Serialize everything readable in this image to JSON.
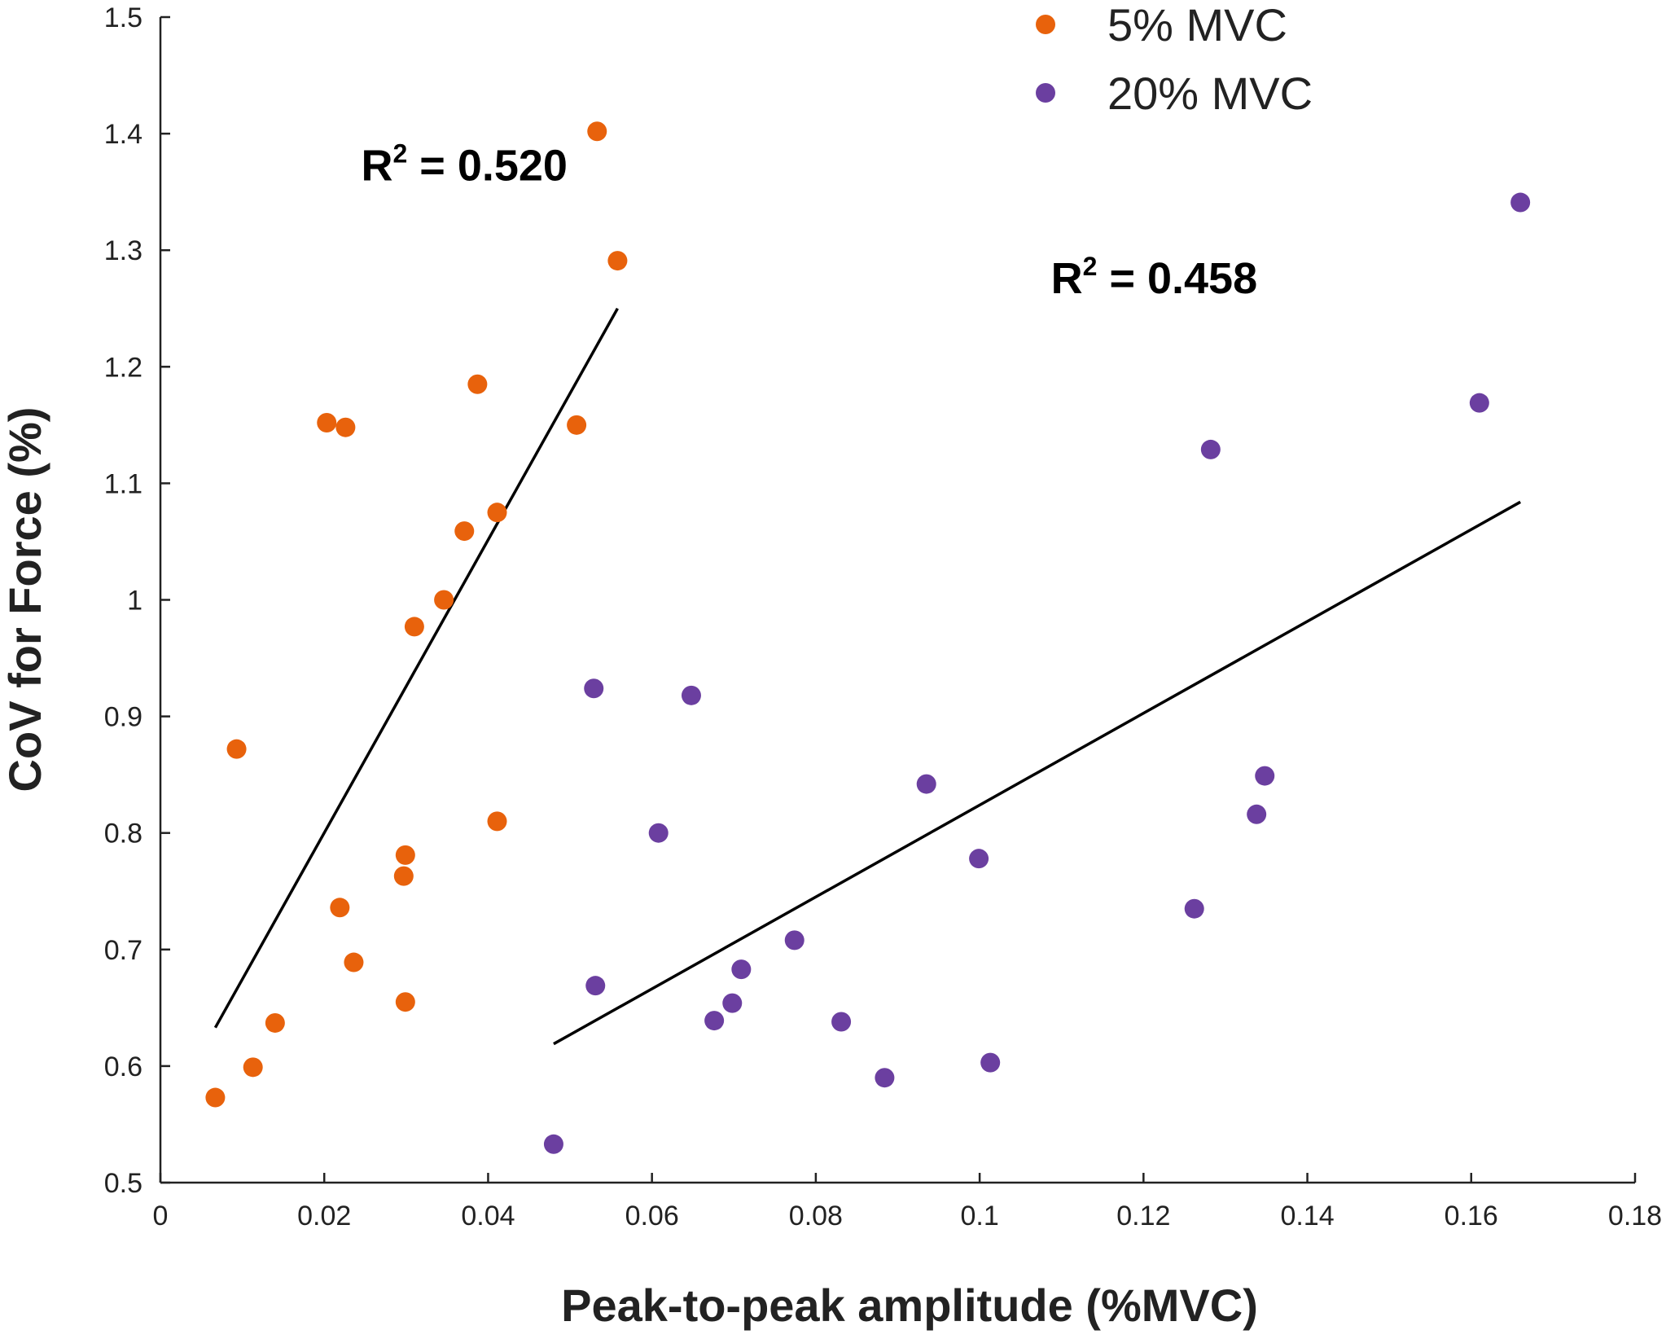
{
  "chart_data": {
    "type": "scatter",
    "title": "",
    "xlabel": "Peak-to-peak amplitude (%MVC)",
    "ylabel": "CoV for Force (%)",
    "xlim": [
      0,
      0.18
    ],
    "ylim": [
      0.5,
      1.5
    ],
    "xticks": [
      0,
      0.02,
      0.04,
      0.06,
      0.08,
      0.1,
      0.12,
      0.14,
      0.16,
      0.18
    ],
    "xtick_labels": [
      "0",
      "0.02",
      "0.04",
      "0.06",
      "0.08",
      "0.1",
      "0.12",
      "0.14",
      "0.16",
      "0.18"
    ],
    "yticks": [
      0.5,
      0.6,
      0.7,
      0.8,
      0.9,
      1.0,
      1.1,
      1.2,
      1.3,
      1.4,
      1.5
    ],
    "ytick_labels": [
      "0.5",
      "0.6",
      "0.7",
      "0.8",
      "0.9",
      "1",
      "1.1",
      "1.2",
      "1.3",
      "1.4",
      "1.5"
    ],
    "grid": false,
    "legend_position": "top-right",
    "series": [
      {
        "name": "5% MVC",
        "color": "#E8620C",
        "points": [
          [
            0.0067,
            0.573
          ],
          [
            0.0093,
            0.872
          ],
          [
            0.0113,
            0.599
          ],
          [
            0.014,
            0.637
          ],
          [
            0.0203,
            1.152
          ],
          [
            0.0219,
            0.736
          ],
          [
            0.0226,
            1.148
          ],
          [
            0.0236,
            0.689
          ],
          [
            0.0297,
            0.763
          ],
          [
            0.0299,
            0.781
          ],
          [
            0.0299,
            0.655
          ],
          [
            0.031,
            0.977
          ],
          [
            0.0346,
            1.0
          ],
          [
            0.0371,
            1.059
          ],
          [
            0.0387,
            1.185
          ],
          [
            0.0411,
            1.075
          ],
          [
            0.0411,
            0.81
          ],
          [
            0.0508,
            1.15
          ],
          [
            0.0533,
            1.402
          ],
          [
            0.0558,
            1.291
          ]
        ],
        "trendline": {
          "x": [
            0.0067,
            0.0558
          ],
          "y": [
            0.633,
            1.25
          ]
        },
        "annotation": {
          "text": "R",
          "sup": "2",
          "value": " = 0.520",
          "at": [
            0.0245,
            1.36
          ]
        }
      },
      {
        "name": "20% MVC",
        "color": "#6B3FA0",
        "points": [
          [
            0.048,
            0.533
          ],
          [
            0.0529,
            0.924
          ],
          [
            0.0531,
            0.669
          ],
          [
            0.0608,
            0.8
          ],
          [
            0.0648,
            0.918
          ],
          [
            0.0676,
            0.639
          ],
          [
            0.0698,
            0.654
          ],
          [
            0.0709,
            0.683
          ],
          [
            0.0774,
            0.708
          ],
          [
            0.0831,
            0.638
          ],
          [
            0.0884,
            0.59
          ],
          [
            0.0935,
            0.842
          ],
          [
            0.0999,
            0.778
          ],
          [
            0.1013,
            0.603
          ],
          [
            0.1262,
            0.735
          ],
          [
            0.1282,
            1.129
          ],
          [
            0.1338,
            0.816
          ],
          [
            0.1348,
            0.849
          ],
          [
            0.161,
            1.169
          ],
          [
            0.166,
            1.341
          ]
        ],
        "trendline": {
          "x": [
            0.048,
            0.166
          ],
          "y": [
            0.619,
            1.084
          ]
        },
        "annotation": {
          "text": "R",
          "sup": "2",
          "value": " = 0.458",
          "at": [
            0.1087,
            1.263
          ]
        }
      }
    ]
  }
}
